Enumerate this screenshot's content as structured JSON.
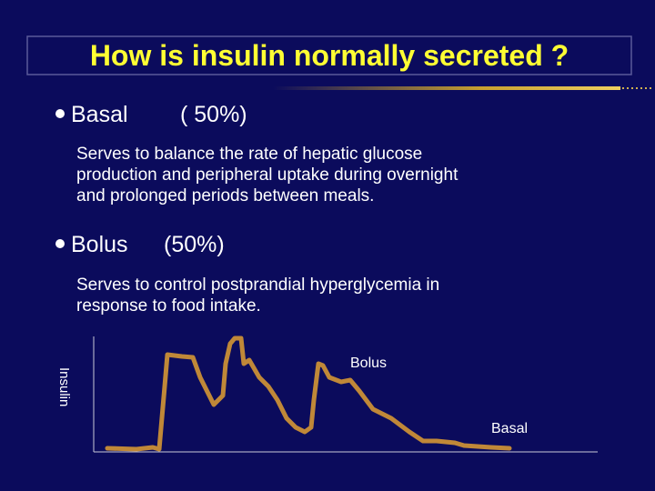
{
  "header": {
    "title": "How is insulin normally secreted ?"
  },
  "sections": [
    {
      "label": "Basal",
      "share": "( 50%)",
      "lines": [
        "Serves to balance the rate  of hepatic  glucose",
        "production  and peripheral uptake during overnight",
        "and prolonged periods between meals."
      ]
    },
    {
      "label": "Bolus",
      "share": "(50%)",
      "lines": [
        "Serves to control postprandial hyperglycemia in",
        "response to food intake."
      ]
    }
  ],
  "diagram": {
    "axis_label": "Insulin",
    "peak_label": "Bolus",
    "base_label": "Basal"
  }
}
